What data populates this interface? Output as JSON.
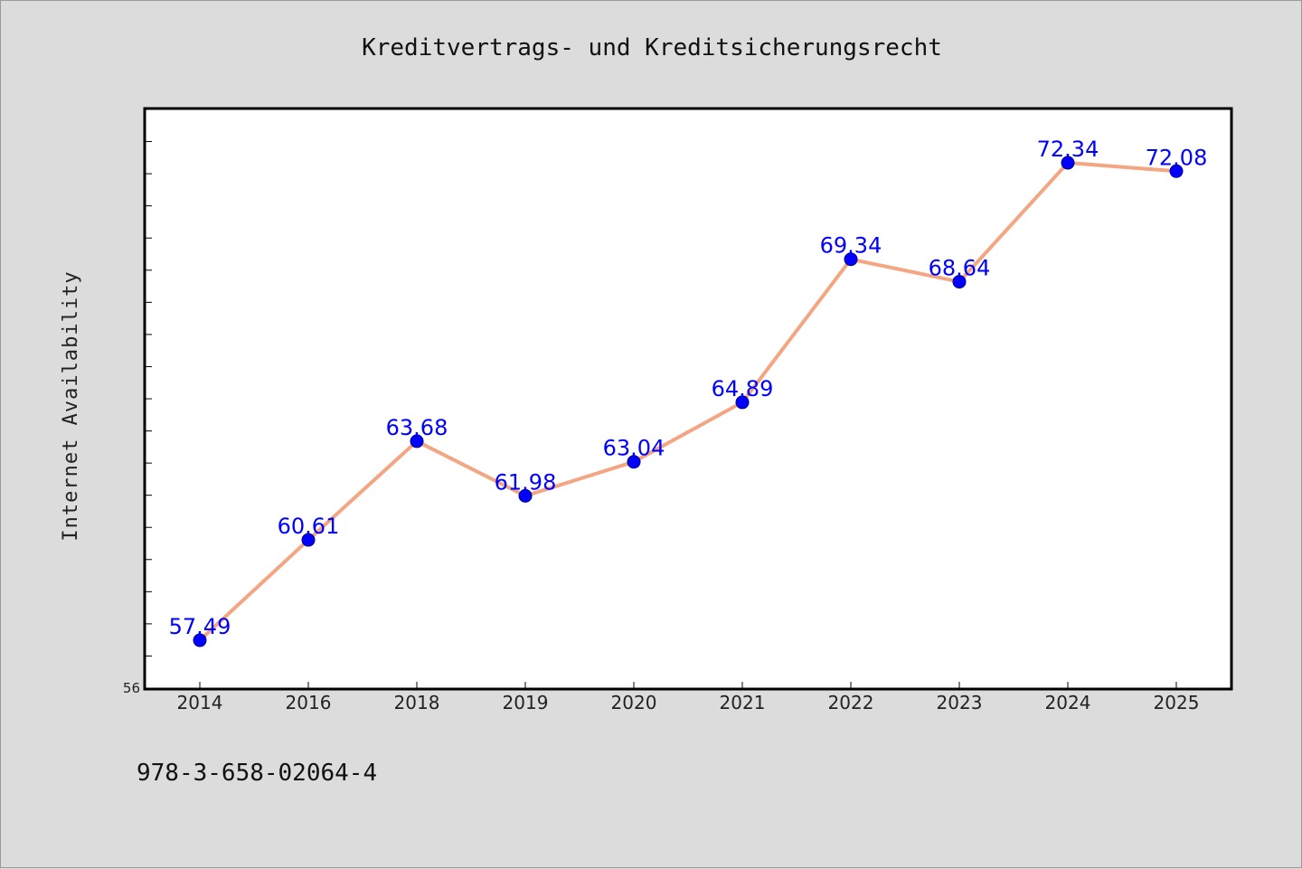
{
  "chart_data": {
    "type": "line",
    "title": "Kreditvertrags- und Kreditsicherungsrecht",
    "xlabel": "",
    "ylabel": "Internet Availability",
    "categories": [
      "2014",
      "2016",
      "2018",
      "2019",
      "2020",
      "2021",
      "2022",
      "2023",
      "2024",
      "2025"
    ],
    "series": [
      {
        "values": [
          57.49,
          60.61,
          63.68,
          61.98,
          63.04,
          64.89,
          69.34,
          68.64,
          72.34,
          72.08
        ],
        "labels": [
          "57.49",
          "60.61",
          "63.68",
          "61.98",
          "63.04",
          "64.89",
          "69.34",
          "68.64",
          "72.34",
          "72.08"
        ],
        "line_color": "#f4a582",
        "marker_color": "#0000ff"
      }
    ],
    "ylim": [
      56,
      74
    ],
    "y_tick_labels": [
      "56"
    ],
    "grid": false,
    "legend": "none",
    "plot_background": "#ffffff",
    "page_background": "#dcdcdc"
  },
  "footnote": "978-3-658-02064-4"
}
